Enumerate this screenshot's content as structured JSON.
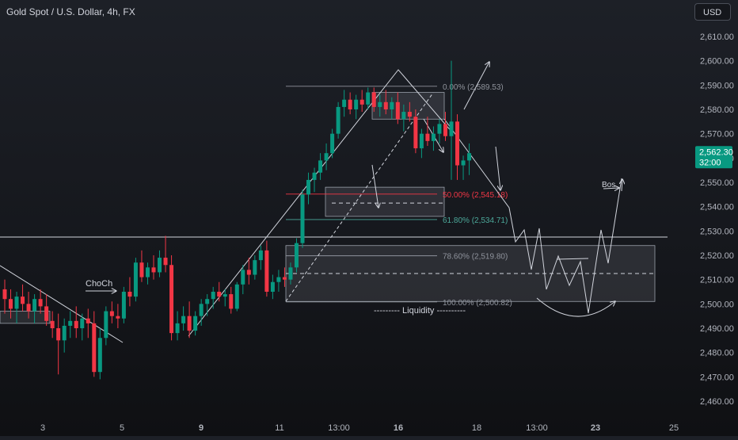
{
  "header": {
    "symbol_title": "Gold Spot / U.S. Dollar, 4h, FX",
    "currency": "USD"
  },
  "chart_data": {
    "type": "candlestick",
    "title": "Gold Spot / U.S. Dollar, 4h, FX",
    "y_axis": {
      "ylim": [
        2454,
        2618
      ],
      "ticks": [
        2610,
        2600,
        2590,
        2580,
        2570,
        2560,
        2550,
        2540,
        2530,
        2520,
        2510,
        2500,
        2490,
        2480,
        2470,
        2460
      ],
      "tick_labels": [
        "2,610.00",
        "2,600.00",
        "2,590.00",
        "2,580.00",
        "2,570.00",
        "2,560.00",
        "2,550.00",
        "2,540.00",
        "2,530.00",
        "2,520.00",
        "2,510.00",
        "2,500.00",
        "2,490.00",
        "2,480.00",
        "2,470.00",
        "2,460.00"
      ]
    },
    "x_axis": {
      "tick_labels": [
        "3",
        "5",
        "9",
        "11",
        "13:00",
        "16",
        "18",
        "13:00",
        "23",
        "25"
      ],
      "bold_labels": [
        "9",
        "16",
        "23"
      ]
    },
    "current_price": {
      "label": "2,562.30",
      "countdown": "32:00",
      "value": 2562.3,
      "color": "#089981"
    },
    "colors": {
      "up": "#089981",
      "down": "#f23645",
      "annotation": "#d1d4dc",
      "fib_red": "#f23645",
      "fib_teal": "#4ca89a"
    },
    "candles": [
      {
        "o": 2506,
        "h": 2510,
        "l": 2496,
        "c": 2502
      },
      {
        "o": 2502,
        "h": 2506,
        "l": 2494,
        "c": 2498
      },
      {
        "o": 2498,
        "h": 2505,
        "l": 2492,
        "c": 2503
      },
      {
        "o": 2503,
        "h": 2508,
        "l": 2497,
        "c": 2500
      },
      {
        "o": 2500,
        "h": 2505,
        "l": 2494,
        "c": 2497
      },
      {
        "o": 2497,
        "h": 2504,
        "l": 2492,
        "c": 2502
      },
      {
        "o": 2502,
        "h": 2506,
        "l": 2496,
        "c": 2499
      },
      {
        "o": 2499,
        "h": 2504,
        "l": 2491,
        "c": 2493
      },
      {
        "o": 2493,
        "h": 2497,
        "l": 2486,
        "c": 2490
      },
      {
        "o": 2490,
        "h": 2496,
        "l": 2471,
        "c": 2485
      },
      {
        "o": 2485,
        "h": 2494,
        "l": 2480,
        "c": 2491
      },
      {
        "o": 2491,
        "h": 2497,
        "l": 2486,
        "c": 2493
      },
      {
        "o": 2493,
        "h": 2499,
        "l": 2486,
        "c": 2490
      },
      {
        "o": 2490,
        "h": 2496,
        "l": 2485,
        "c": 2494
      },
      {
        "o": 2494,
        "h": 2498,
        "l": 2486,
        "c": 2492
      },
      {
        "o": 2492,
        "h": 2497,
        "l": 2470,
        "c": 2472
      },
      {
        "o": 2472,
        "h": 2490,
        "l": 2469,
        "c": 2486
      },
      {
        "o": 2486,
        "h": 2499,
        "l": 2483,
        "c": 2497
      },
      {
        "o": 2497,
        "h": 2501,
        "l": 2492,
        "c": 2495
      },
      {
        "o": 2495,
        "h": 2500,
        "l": 2490,
        "c": 2494
      },
      {
        "o": 2494,
        "h": 2507,
        "l": 2492,
        "c": 2505
      },
      {
        "o": 2505,
        "h": 2511,
        "l": 2499,
        "c": 2503
      },
      {
        "o": 2503,
        "h": 2519,
        "l": 2501,
        "c": 2517
      },
      {
        "o": 2517,
        "h": 2522,
        "l": 2509,
        "c": 2511
      },
      {
        "o": 2511,
        "h": 2517,
        "l": 2508,
        "c": 2515
      },
      {
        "o": 2515,
        "h": 2520,
        "l": 2510,
        "c": 2513
      },
      {
        "o": 2513,
        "h": 2522,
        "l": 2511,
        "c": 2519
      },
      {
        "o": 2519,
        "h": 2528,
        "l": 2513,
        "c": 2516
      },
      {
        "o": 2516,
        "h": 2520,
        "l": 2485,
        "c": 2488
      },
      {
        "o": 2488,
        "h": 2497,
        "l": 2485,
        "c": 2492
      },
      {
        "o": 2492,
        "h": 2499,
        "l": 2489,
        "c": 2495
      },
      {
        "o": 2495,
        "h": 2501,
        "l": 2486,
        "c": 2489
      },
      {
        "o": 2489,
        "h": 2497,
        "l": 2487,
        "c": 2495
      },
      {
        "o": 2495,
        "h": 2502,
        "l": 2491,
        "c": 2500
      },
      {
        "o": 2500,
        "h": 2504,
        "l": 2495,
        "c": 2502
      },
      {
        "o": 2502,
        "h": 2507,
        "l": 2498,
        "c": 2505
      },
      {
        "o": 2505,
        "h": 2509,
        "l": 2501,
        "c": 2503
      },
      {
        "o": 2503,
        "h": 2506,
        "l": 2499,
        "c": 2504
      },
      {
        "o": 2504,
        "h": 2507,
        "l": 2496,
        "c": 2498
      },
      {
        "o": 2498,
        "h": 2509,
        "l": 2497,
        "c": 2508
      },
      {
        "o": 2508,
        "h": 2516,
        "l": 2504,
        "c": 2514
      },
      {
        "o": 2514,
        "h": 2519,
        "l": 2508,
        "c": 2512
      },
      {
        "o": 2512,
        "h": 2520,
        "l": 2510,
        "c": 2518
      },
      {
        "o": 2518,
        "h": 2524,
        "l": 2514,
        "c": 2522
      },
      {
        "o": 2522,
        "h": 2526,
        "l": 2503,
        "c": 2505
      },
      {
        "o": 2505,
        "h": 2512,
        "l": 2502,
        "c": 2509
      },
      {
        "o": 2509,
        "h": 2514,
        "l": 2505,
        "c": 2511
      },
      {
        "o": 2511,
        "h": 2515,
        "l": 2507,
        "c": 2510
      },
      {
        "o": 2510,
        "h": 2517,
        "l": 2508,
        "c": 2515
      },
      {
        "o": 2515,
        "h": 2527,
        "l": 2513,
        "c": 2525
      },
      {
        "o": 2525,
        "h": 2547,
        "l": 2523,
        "c": 2545
      },
      {
        "o": 2545,
        "h": 2554,
        "l": 2541,
        "c": 2551
      },
      {
        "o": 2551,
        "h": 2556,
        "l": 2546,
        "c": 2554
      },
      {
        "o": 2554,
        "h": 2562,
        "l": 2551,
        "c": 2559
      },
      {
        "o": 2559,
        "h": 2566,
        "l": 2555,
        "c": 2562
      },
      {
        "o": 2562,
        "h": 2572,
        "l": 2560,
        "c": 2570
      },
      {
        "o": 2570,
        "h": 2583,
        "l": 2568,
        "c": 2581
      },
      {
        "o": 2581,
        "h": 2588,
        "l": 2577,
        "c": 2584
      },
      {
        "o": 2584,
        "h": 2587,
        "l": 2578,
        "c": 2580
      },
      {
        "o": 2580,
        "h": 2586,
        "l": 2576,
        "c": 2584
      },
      {
        "o": 2584,
        "h": 2588,
        "l": 2579,
        "c": 2582
      },
      {
        "o": 2582,
        "h": 2589,
        "l": 2580,
        "c": 2587
      },
      {
        "o": 2587,
        "h": 2589,
        "l": 2579,
        "c": 2581
      },
      {
        "o": 2581,
        "h": 2586,
        "l": 2577,
        "c": 2583
      },
      {
        "o": 2583,
        "h": 2588,
        "l": 2578,
        "c": 2580
      },
      {
        "o": 2580,
        "h": 2585,
        "l": 2576,
        "c": 2583
      },
      {
        "o": 2583,
        "h": 2587,
        "l": 2574,
        "c": 2576
      },
      {
        "o": 2576,
        "h": 2582,
        "l": 2571,
        "c": 2579
      },
      {
        "o": 2579,
        "h": 2583,
        "l": 2575,
        "c": 2577
      },
      {
        "o": 2577,
        "h": 2580,
        "l": 2562,
        "c": 2564
      },
      {
        "o": 2564,
        "h": 2572,
        "l": 2560,
        "c": 2570
      },
      {
        "o": 2570,
        "h": 2577,
        "l": 2565,
        "c": 2567
      },
      {
        "o": 2567,
        "h": 2573,
        "l": 2563,
        "c": 2570
      },
      {
        "o": 2570,
        "h": 2576,
        "l": 2566,
        "c": 2574
      },
      {
        "o": 2574,
        "h": 2579,
        "l": 2567,
        "c": 2569
      },
      {
        "o": 2569,
        "h": 2600,
        "l": 2551,
        "c": 2575
      },
      {
        "o": 2575,
        "h": 2578,
        "l": 2551,
        "c": 2557
      },
      {
        "o": 2557,
        "h": 2561,
        "l": 2551,
        "c": 2559
      },
      {
        "o": 2559,
        "h": 2566,
        "l": 2553,
        "c": 2562
      }
    ],
    "fibonacci": [
      {
        "level": 2589.53,
        "label": "0.00% (2,589.53)",
        "color": "#8f939c"
      },
      {
        "level": 2545.18,
        "label": "50.00% (2,545.18)",
        "color": "#f23645"
      },
      {
        "level": 2534.71,
        "label": "61.80% (2,534.71)",
        "color": "#4ca89a"
      },
      {
        "level": 2519.8,
        "label": "78.60% (2,519.80)",
        "color": "#8f939c"
      },
      {
        "level": 2500.82,
        "label": "100.00% (2,500.82)",
        "color": "#8f939c"
      }
    ],
    "annotations": [
      {
        "text": "ChoCh"
      },
      {
        "text": "Bos"
      },
      {
        "text": "--------- Liquidity ----------"
      }
    ],
    "zones": [
      {
        "name": "upper-supply-zone",
        "y_top": 2587,
        "y_bottom": 2576
      },
      {
        "name": "mid-fvg-zone",
        "y_top": 2548,
        "y_bottom": 2536
      },
      {
        "name": "demand-zone",
        "y_top": 2524,
        "y_bottom": 2501
      },
      {
        "name": "left-small-zone",
        "y_top": 2497,
        "y_bottom": 2492
      }
    ],
    "horizontal_line": {
      "value": 2527.5
    },
    "grid": false,
    "legend": "none"
  }
}
